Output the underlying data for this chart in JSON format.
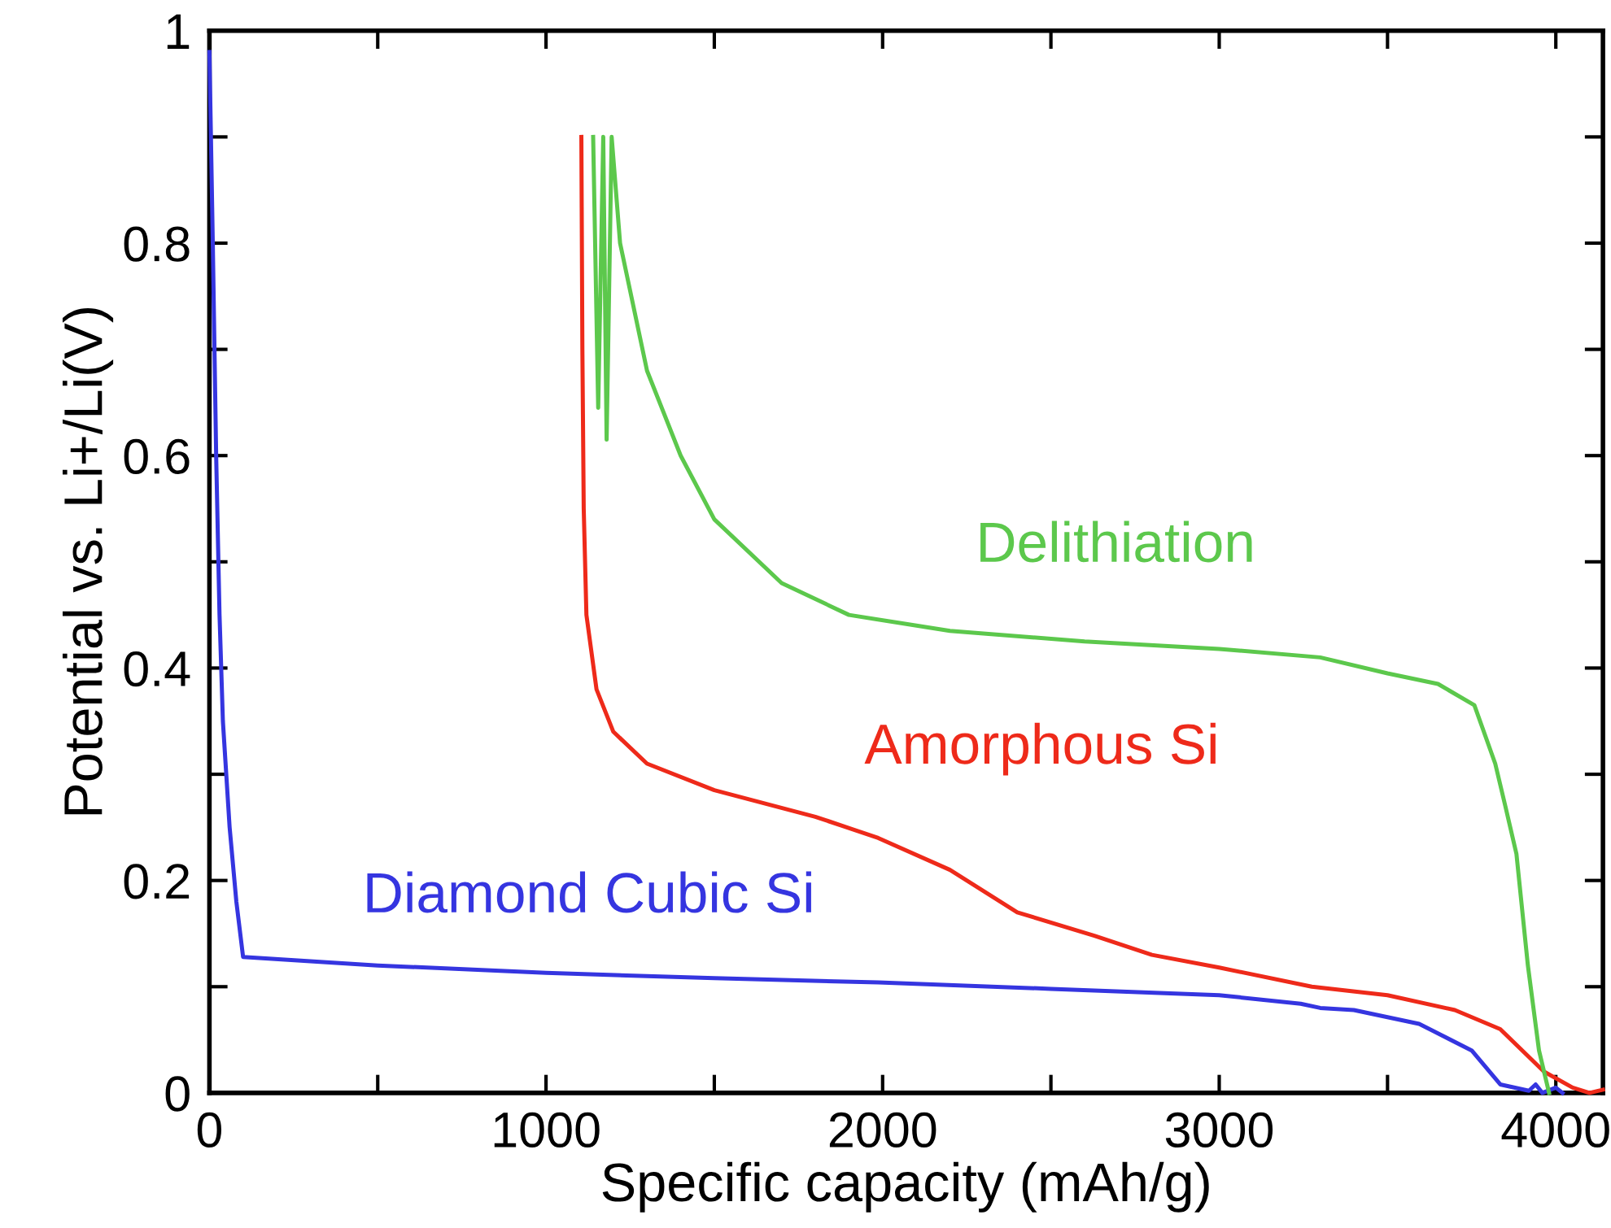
{
  "chart_data": {
    "type": "line",
    "xlabel": "Specific capacity (mAh/g)",
    "ylabel": "Potential vs. Li+/Li(V)",
    "xlim": [
      0,
      4140
    ],
    "ylim": [
      0,
      1
    ],
    "xticks": [
      0,
      {
        "value": 500,
        "label": null
      },
      1000,
      {
        "value": 1500,
        "label": null
      },
      2000,
      {
        "value": 2500,
        "label": null
      },
      3000,
      {
        "value": 3500,
        "label": null
      },
      4000
    ],
    "yticks": [
      0,
      {
        "value": 0.1,
        "label": null
      },
      0.2,
      {
        "value": 0.3,
        "label": null
      },
      0.4,
      {
        "value": 0.5,
        "label": null
      },
      0.6,
      {
        "value": 0.7,
        "label": null
      },
      0.8,
      {
        "value": 0.9,
        "label": null
      },
      1
    ],
    "grid": false,
    "legend": false,
    "marker": "none",
    "line_style": "solid",
    "series": [
      {
        "name": "Diamond Cubic Si",
        "color": "#3535e0",
        "x": [
          0,
          10,
          20,
          30,
          40,
          60,
          80,
          100,
          500,
          1000,
          1500,
          1987,
          2500,
          3000,
          3242,
          3300,
          3400,
          3594,
          3750,
          3835,
          3920,
          3940,
          3960,
          4000,
          4020
        ],
        "values": [
          0.98,
          0.8,
          0.6,
          0.45,
          0.35,
          0.25,
          0.18,
          0.128,
          0.12,
          0.113,
          0.108,
          0.104,
          0.098,
          0.092,
          0.084,
          0.08,
          0.078,
          0.065,
          0.04,
          0.008,
          0.002,
          0.008,
          0,
          0.005,
          0
        ]
      },
      {
        "name": "Amorphous Si",
        "color": "#ee2a1a",
        "x": [
          1105,
          1108,
          1112,
          1120,
          1150,
          1200,
          1300,
          1500,
          1800,
          1987,
          2200,
          2400,
          2629,
          2800,
          3000,
          3275,
          3500,
          3700,
          3835,
          3965,
          4050,
          4100,
          4140
        ],
        "values": [
          0.9,
          0.7,
          0.55,
          0.45,
          0.38,
          0.34,
          0.31,
          0.285,
          0.26,
          0.24,
          0.21,
          0.17,
          0.148,
          0.13,
          0.118,
          0.1,
          0.092,
          0.078,
          0.06,
          0.02,
          0.005,
          0,
          0.003
        ]
      },
      {
        "name": "Delithiation",
        "color": "#5cc84c",
        "x": [
          1140,
          1155,
          1170,
          1180,
          1195,
          1220,
          1300,
          1400,
          1500,
          1700,
          1900,
          2200,
          2600,
          3000,
          3300,
          3500,
          3650,
          3758,
          3820,
          3850,
          3883,
          3917,
          3950,
          3980
        ],
        "values": [
          0.9,
          0.645,
          0.9,
          0.615,
          0.9,
          0.8,
          0.68,
          0.6,
          0.54,
          0.48,
          0.45,
          0.435,
          0.425,
          0.418,
          0.41,
          0.395,
          0.385,
          0.365,
          0.31,
          0.27,
          0.225,
          0.12,
          0.04,
          0
        ]
      }
    ]
  }
}
